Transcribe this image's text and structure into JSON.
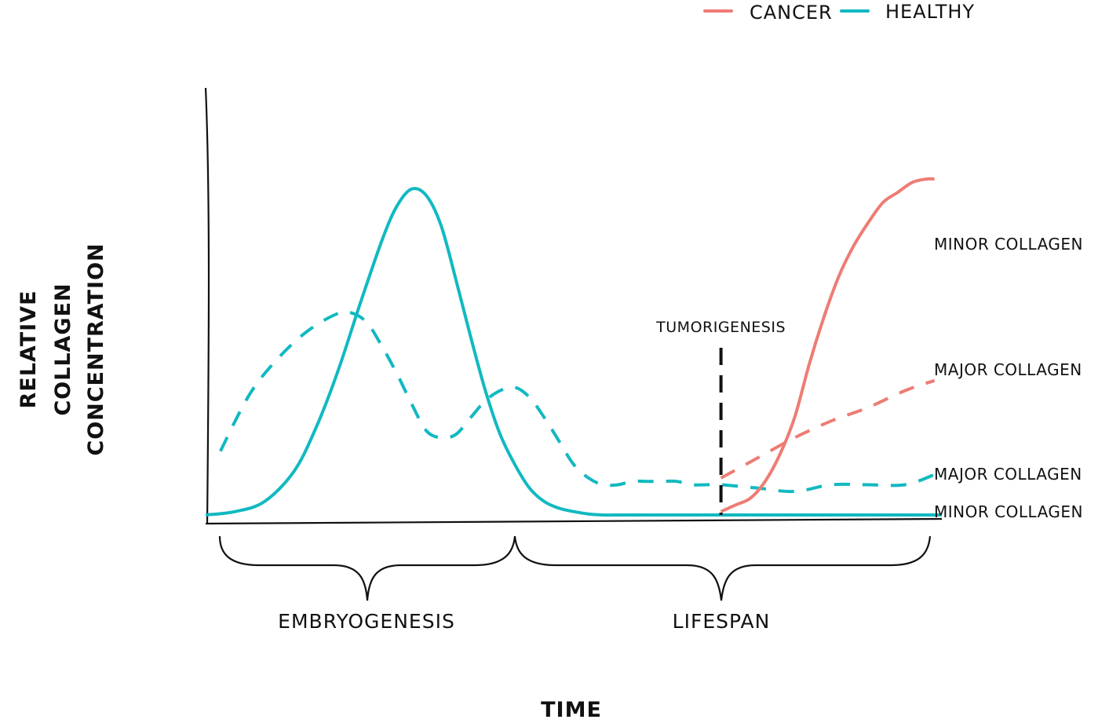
{
  "chart_data": {
    "type": "line",
    "xlabel": "TIME",
    "ylabel": [
      "RELATIVE",
      "COLLAGEN",
      "CONCENTRATION"
    ],
    "xlim": [
      0,
      100
    ],
    "ylim": [
      0,
      100
    ],
    "grid": false,
    "legend": {
      "placement": "top-right",
      "items": [
        {
          "label": "CANCER",
          "color": "#ee7c74"
        },
        {
          "label": "HEALTHY",
          "color": "#11b9c1"
        }
      ]
    },
    "series": [
      {
        "name": "MINOR COLLAGEN",
        "group": "HEALTHY",
        "dash": "solid",
        "color": "#11b9c1",
        "x": [
          0,
          4,
          8,
          12,
          15,
          18,
          21,
          24,
          26,
          28,
          30,
          32,
          34,
          36,
          38,
          40,
          42,
          44,
          46,
          48,
          50,
          52,
          54,
          56,
          58,
          60,
          62,
          65,
          70,
          75,
          80,
          85,
          90,
          95,
          100
        ],
        "y": [
          0,
          1,
          4,
          13,
          26,
          43,
          63,
          82,
          92,
          97,
          95,
          86,
          70,
          53,
          37,
          24,
          15,
          8,
          4,
          2,
          1,
          0.3,
          0,
          0,
          0,
          0,
          0,
          0,
          0,
          0,
          0,
          0,
          0,
          0,
          0
        ]
      },
      {
        "name": "MAJOR COLLAGEN",
        "group": "HEALTHY",
        "dash": "dashed",
        "color": "#11b9c1",
        "x": [
          2,
          6,
          10,
          14,
          18,
          20,
          22,
          24,
          26,
          28,
          30,
          32,
          34,
          36,
          38,
          40,
          42,
          44,
          46,
          48,
          50,
          52,
          54,
          56,
          58,
          60,
          62,
          64,
          66,
          68,
          70,
          75,
          80,
          85,
          90,
          95,
          99
        ],
        "y": [
          19,
          36,
          47,
          55,
          60,
          60,
          57,
          50,
          42,
          33,
          25,
          23,
          24,
          29,
          34,
          37,
          38,
          35,
          29,
          22,
          15,
          11,
          9,
          9,
          10,
          10,
          10,
          10,
          9,
          9,
          9,
          8,
          7,
          9,
          9,
          9,
          12
        ]
      },
      {
        "name": "MINOR COLLAGEN",
        "group": "CANCER",
        "dash": "solid",
        "color": "#ee7c74",
        "x": [
          70,
          72,
          74,
          76,
          78,
          80,
          82,
          84,
          86,
          88,
          90,
          92,
          94,
          96,
          98,
          99
        ],
        "y": [
          1,
          3,
          5,
          10,
          18,
          29,
          45,
          59,
          71,
          80,
          87,
          93,
          96,
          99,
          100,
          100
        ]
      },
      {
        "name": "MAJOR COLLAGEN",
        "group": "CANCER",
        "dash": "dashed",
        "color": "#ee7c74",
        "x": [
          70,
          75,
          80,
          85,
          90,
          95,
          99
        ],
        "y": [
          11,
          17,
          23,
          28,
          32,
          37,
          40
        ]
      }
    ],
    "annotations": [
      {
        "label": "TUMORIGENESIS",
        "x": 70,
        "style": "dashed vertical line"
      }
    ],
    "phases": [
      {
        "label": "EMBRYOGENESIS",
        "x_range": [
          2,
          42
        ]
      },
      {
        "label": "LIFESPAN",
        "x_range": [
          42,
          99
        ]
      }
    ]
  }
}
